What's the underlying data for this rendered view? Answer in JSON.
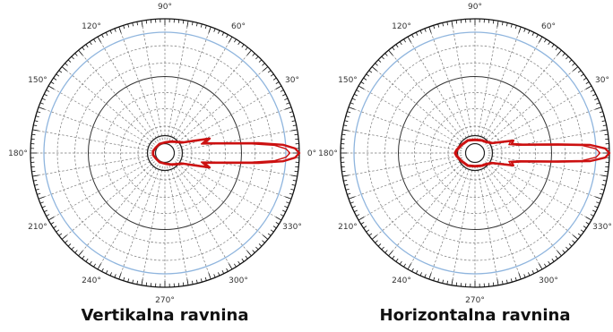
{
  "chart_data": [
    {
      "type": "polar",
      "caption": "Vertikalna ravnina",
      "angle_ticks": [
        "0°",
        "30°",
        "60°",
        "90°",
        "120°",
        "150°",
        "180°",
        "210°",
        "240°",
        "270°",
        "300°",
        "330°"
      ],
      "angle_tick_degrees": [
        0,
        30,
        60,
        90,
        120,
        150,
        180,
        210,
        240,
        270,
        300,
        330
      ],
      "grid": true,
      "series": [
        {
          "color": "#cc1111",
          "angle_deg": [
            0,
            2,
            4,
            6,
            10,
            14,
            18,
            24,
            30,
            45,
            60,
            90,
            120,
            150,
            170,
            180,
            190,
            210,
            240,
            270,
            300,
            315,
            330,
            336,
            342,
            346,
            350,
            354,
            356,
            358,
            360
          ],
          "radius": [
            1.0,
            0.97,
            0.88,
            0.7,
            0.42,
            0.3,
            0.35,
            0.22,
            0.16,
            0.12,
            0.1,
            0.08,
            0.08,
            0.08,
            0.09,
            0.09,
            0.09,
            0.08,
            0.08,
            0.08,
            0.1,
            0.12,
            0.16,
            0.22,
            0.35,
            0.3,
            0.42,
            0.7,
            0.88,
            0.97,
            1.0
          ]
        }
      ]
    },
    {
      "type": "polar",
      "caption": "Horizontalna ravnina",
      "angle_ticks": [
        "0°",
        "30°",
        "60°",
        "90°",
        "120°",
        "150°",
        "180°",
        "210°",
        "240°",
        "270°",
        "300°",
        "330°"
      ],
      "angle_tick_degrees": [
        0,
        30,
        60,
        90,
        120,
        150,
        180,
        210,
        240,
        270,
        300,
        330
      ],
      "grid": true,
      "series": [
        {
          "color": "#cc1111",
          "angle_deg": [
            0,
            2,
            4,
            6,
            10,
            14,
            18,
            24,
            30,
            45,
            60,
            90,
            120,
            150,
            170,
            180,
            190,
            210,
            240,
            270,
            300,
            315,
            330,
            336,
            342,
            346,
            350,
            354,
            356,
            358,
            360
          ],
          "radius": [
            1.0,
            0.97,
            0.86,
            0.62,
            0.36,
            0.28,
            0.3,
            0.2,
            0.15,
            0.12,
            0.11,
            0.1,
            0.11,
            0.12,
            0.14,
            0.15,
            0.14,
            0.12,
            0.11,
            0.1,
            0.11,
            0.12,
            0.15,
            0.2,
            0.3,
            0.28,
            0.36,
            0.62,
            0.86,
            0.97,
            1.0
          ]
        }
      ]
    }
  ]
}
